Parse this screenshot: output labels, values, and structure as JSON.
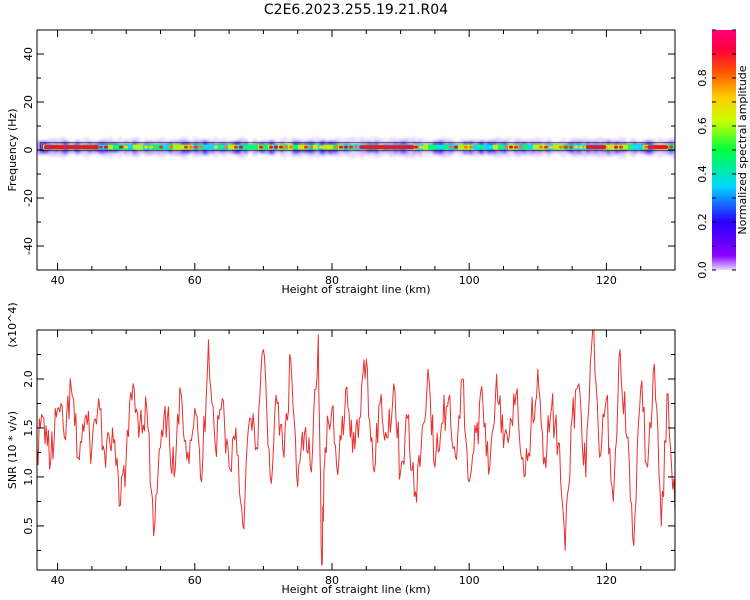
{
  "title": "C2E6.2023.255.19.21.R04",
  "colors": {
    "signal": "#e8302e",
    "background": "#ffffff",
    "axis": "#000000"
  },
  "chart_data": [
    {
      "type": "heatmap",
      "xlabel": "Height of straight line (km)",
      "ylabel": "Frequency (Hz)",
      "xlim": [
        37,
        130
      ],
      "ylim": [
        -50,
        50
      ],
      "x_ticks": [
        "40",
        "60",
        "80",
        "100",
        "120"
      ],
      "y_ticks": [
        "40",
        "20",
        "0",
        "-20",
        "-40"
      ],
      "colorbar": {
        "label": "Normalized spectral amplitude",
        "range": [
          0.0,
          1.0
        ],
        "ticks": [
          "0.0",
          "0.2",
          "0.4",
          "0.6",
          "0.8"
        ],
        "colormap": "rainbow (purple→blue→cyan→green→yellow→orange→red→magenta)"
      },
      "band": {
        "center_hz": 1,
        "half_width_hz": 2,
        "dominant_amplitude": 0.9
      }
    },
    {
      "type": "line",
      "xlabel": "Height of straight line (km)",
      "ylabel": "SNR (10 * v/v)",
      "scale_label": "(x10^4)",
      "xlim": [
        37,
        130
      ],
      "ylim": [
        0.05,
        2.5
      ],
      "x_ticks": [
        "40",
        "60",
        "80",
        "100",
        "120"
      ],
      "y_ticks": [
        "0.5",
        "1.0",
        "1.5",
        "2.0"
      ],
      "series": [
        {
          "x": [
            37,
            38,
            39,
            40,
            41,
            42,
            43,
            44,
            45,
            46,
            47,
            48,
            49,
            50,
            51,
            52,
            53,
            54,
            55,
            56,
            57,
            58,
            59,
            60,
            61,
            62,
            63,
            64,
            65,
            66,
            67,
            68,
            69,
            70,
            71,
            72,
            73,
            74,
            75,
            76,
            77,
            78,
            78.5,
            79,
            80,
            81,
            82,
            83,
            84,
            85,
            86,
            87,
            88,
            89,
            90,
            91,
            92,
            93,
            94,
            95,
            96,
            97,
            98,
            99,
            100,
            101,
            102,
            103,
            104,
            105,
            106,
            107,
            108,
            109,
            110,
            111,
            112,
            113,
            114,
            115,
            116,
            117,
            118,
            119,
            120,
            121,
            122,
            123,
            124,
            125,
            126,
            127,
            128,
            129,
            130
          ],
          "values": [
            1.3,
            1.6,
            1.15,
            1.7,
            1.4,
            1.9,
            1.2,
            1.6,
            1.3,
            1.8,
            1.1,
            1.5,
            0.7,
            1.2,
            1.95,
            1.55,
            1.7,
            0.4,
            1.3,
            1.6,
            1.0,
            1.85,
            1.25,
            1.7,
            0.95,
            2.4,
            1.3,
            1.8,
            1.1,
            1.5,
            0.5,
            1.6,
            1.3,
            2.3,
            1.0,
            1.75,
            1.2,
            2.2,
            0.9,
            1.45,
            1.05,
            2.45,
            0.1,
            1.3,
            1.7,
            1.15,
            1.9,
            1.25,
            1.6,
            2.2,
            1.1,
            1.75,
            1.4,
            1.95,
            1.05,
            1.6,
            0.8,
            1.3,
            2.1,
            1.1,
            1.55,
            1.8,
            1.2,
            2.0,
            0.95,
            1.45,
            1.75,
            1.1,
            2.05,
            1.3,
            1.6,
            1.9,
            1.0,
            1.5,
            2.1,
            1.2,
            1.7,
            1.35,
            0.25,
            1.6,
            1.95,
            1.0,
            2.5,
            1.2,
            1.8,
            0.75,
            2.3,
            1.4,
            0.3,
            1.9,
            1.1,
            2.15,
            0.5,
            1.85,
            0.65
          ]
        }
      ]
    }
  ]
}
